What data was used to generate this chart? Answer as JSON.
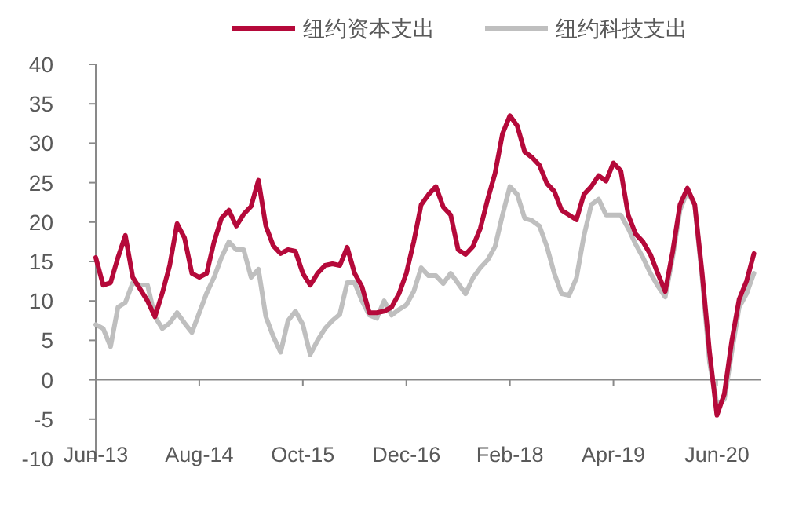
{
  "chart_data": {
    "type": "line",
    "x": [
      "2013-06",
      "2013-07",
      "2013-08",
      "2013-09",
      "2013-10",
      "2013-11",
      "2013-12",
      "2014-01",
      "2014-02",
      "2014-03",
      "2014-04",
      "2014-05",
      "2014-06",
      "2014-07",
      "2014-08",
      "2014-09",
      "2014-10",
      "2014-11",
      "2014-12",
      "2015-01",
      "2015-02",
      "2015-03",
      "2015-04",
      "2015-05",
      "2015-06",
      "2015-07",
      "2015-08",
      "2015-09",
      "2015-10",
      "2015-11",
      "2015-12",
      "2016-01",
      "2016-02",
      "2016-03",
      "2016-04",
      "2016-05",
      "2016-06",
      "2016-07",
      "2016-08",
      "2016-09",
      "2016-10",
      "2016-11",
      "2016-12",
      "2017-01",
      "2017-02",
      "2017-03",
      "2017-04",
      "2017-05",
      "2017-06",
      "2017-07",
      "2017-08",
      "2017-09",
      "2017-10",
      "2017-11",
      "2017-12",
      "2018-01",
      "2018-02",
      "2018-03",
      "2018-04",
      "2018-05",
      "2018-06",
      "2018-07",
      "2018-08",
      "2018-09",
      "2018-10",
      "2018-11",
      "2018-12",
      "2019-01",
      "2019-02",
      "2019-03",
      "2019-04",
      "2019-05",
      "2019-06",
      "2019-07",
      "2019-08",
      "2019-09",
      "2019-10",
      "2019-11",
      "2019-12",
      "2020-01",
      "2020-02",
      "2020-03",
      "2020-04",
      "2020-05",
      "2020-06",
      "2020-07",
      "2020-08",
      "2020-09",
      "2020-10",
      "2020-11"
    ],
    "series": [
      {
        "name": "纽约资本支出",
        "color": "#b5093a",
        "values": [
          15.5,
          12,
          12.3,
          15.5,
          18.3,
          13,
          11.5,
          10,
          8,
          11,
          14.5,
          19.8,
          18,
          13.5,
          13,
          13.5,
          17.5,
          20.5,
          21.5,
          19.5,
          21,
          22,
          25.3,
          19.5,
          17,
          16,
          16.5,
          16.3,
          13.5,
          12,
          13.5,
          14.5,
          14.7,
          14.5,
          16.8,
          13.5,
          11.8,
          8.5,
          8.5,
          8.7,
          9.2,
          10.9,
          13.5,
          17.5,
          22.2,
          23.5,
          24.5,
          21.9,
          20.9,
          16.5,
          15.9,
          16.9,
          19.2,
          22.9,
          26.2,
          31.2,
          33.5,
          32.2,
          28.9,
          28.2,
          27.2,
          24.9,
          23.9,
          21.5,
          20.9,
          20.3,
          23.5,
          24.5,
          25.9,
          25.2,
          27.5,
          26.5,
          20.9,
          18.5,
          17.5,
          15.9,
          13.5,
          11.2,
          16.2,
          22.2,
          24.3,
          22.2,
          13.5,
          3.5,
          -4.5,
          -1.8,
          4.9,
          10.2,
          12.5,
          16
        ]
      },
      {
        "name": "纽约科技支出",
        "color": "#bfbfbf",
        "values": [
          7,
          6.5,
          4.2,
          9.2,
          9.8,
          12.3,
          12,
          12,
          8,
          6.5,
          7.2,
          8.5,
          7.2,
          6,
          8.5,
          11,
          13,
          15.5,
          17.5,
          16.5,
          16.5,
          13,
          14,
          8,
          5.5,
          3.5,
          7.5,
          8.7,
          7,
          3.2,
          5,
          6.5,
          7.5,
          8.3,
          12.3,
          12.3,
          10,
          8.2,
          7.8,
          10,
          8.2,
          8.9,
          9.5,
          11.2,
          14.2,
          13.2,
          13.2,
          12.2,
          13.5,
          12.2,
          10.9,
          12.9,
          14.2,
          15.2,
          16.9,
          20.9,
          24.5,
          23.5,
          20.5,
          20.2,
          19.5,
          16.9,
          13.5,
          10.9,
          10.7,
          12.9,
          18.2,
          22.2,
          22.9,
          20.9,
          20.9,
          20.9,
          19.2,
          17.2,
          15.5,
          13.5,
          11.9,
          10.5,
          15.5,
          21.5,
          23.9,
          22.2,
          12.9,
          2.2,
          -3.1,
          -2.5,
          3.5,
          9.2,
          10.9,
          13.5
        ]
      }
    ],
    "xlim": [
      "2013-06",
      "2020-12"
    ],
    "xticks": [
      {
        "value": "2013-06",
        "label": "Jun-13"
      },
      {
        "value": "2014-08",
        "label": "Aug-14"
      },
      {
        "value": "2015-10",
        "label": "Oct-15"
      },
      {
        "value": "2016-12",
        "label": "Dec-16"
      },
      {
        "value": "2018-02",
        "label": "Feb-18"
      },
      {
        "value": "2019-04",
        "label": "Apr-19"
      },
      {
        "value": "2020-06",
        "label": "Jun-20"
      }
    ],
    "ylim": [
      -10,
      40
    ],
    "yticks": [
      -10,
      -5,
      0,
      5,
      10,
      15,
      20,
      25,
      30,
      35,
      40
    ],
    "legend": "top",
    "marker": "none",
    "line_style": "solid"
  }
}
